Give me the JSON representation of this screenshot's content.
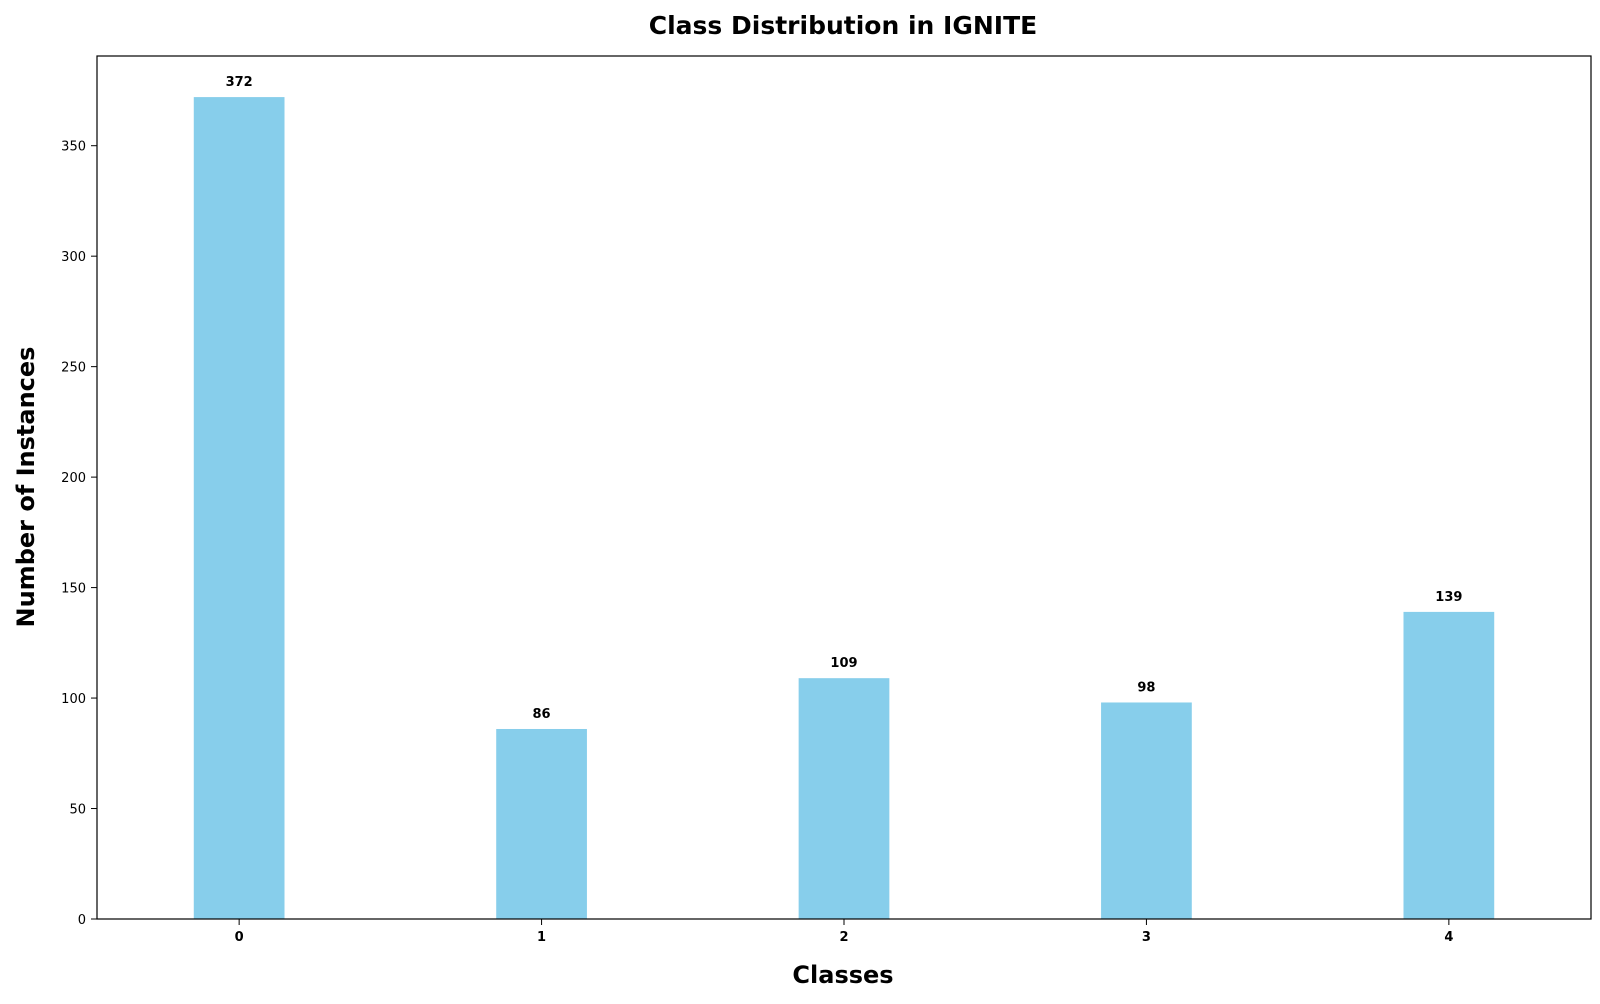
{
  "chart_data": {
    "type": "bar",
    "title": "Class Distribution in IGNITE",
    "xlabel": "Classes",
    "ylabel": "Number of Instances",
    "categories": [
      "0",
      "1",
      "2",
      "3",
      "4"
    ],
    "values": [
      372,
      86,
      109,
      98,
      139
    ],
    "ylim": [
      0,
      390.6
    ],
    "yticks": [
      0,
      50,
      100,
      150,
      200,
      250,
      300,
      350
    ],
    "bar_color": "#87CEEB",
    "grid": false,
    "legend": "none",
    "data_labels": true
  }
}
